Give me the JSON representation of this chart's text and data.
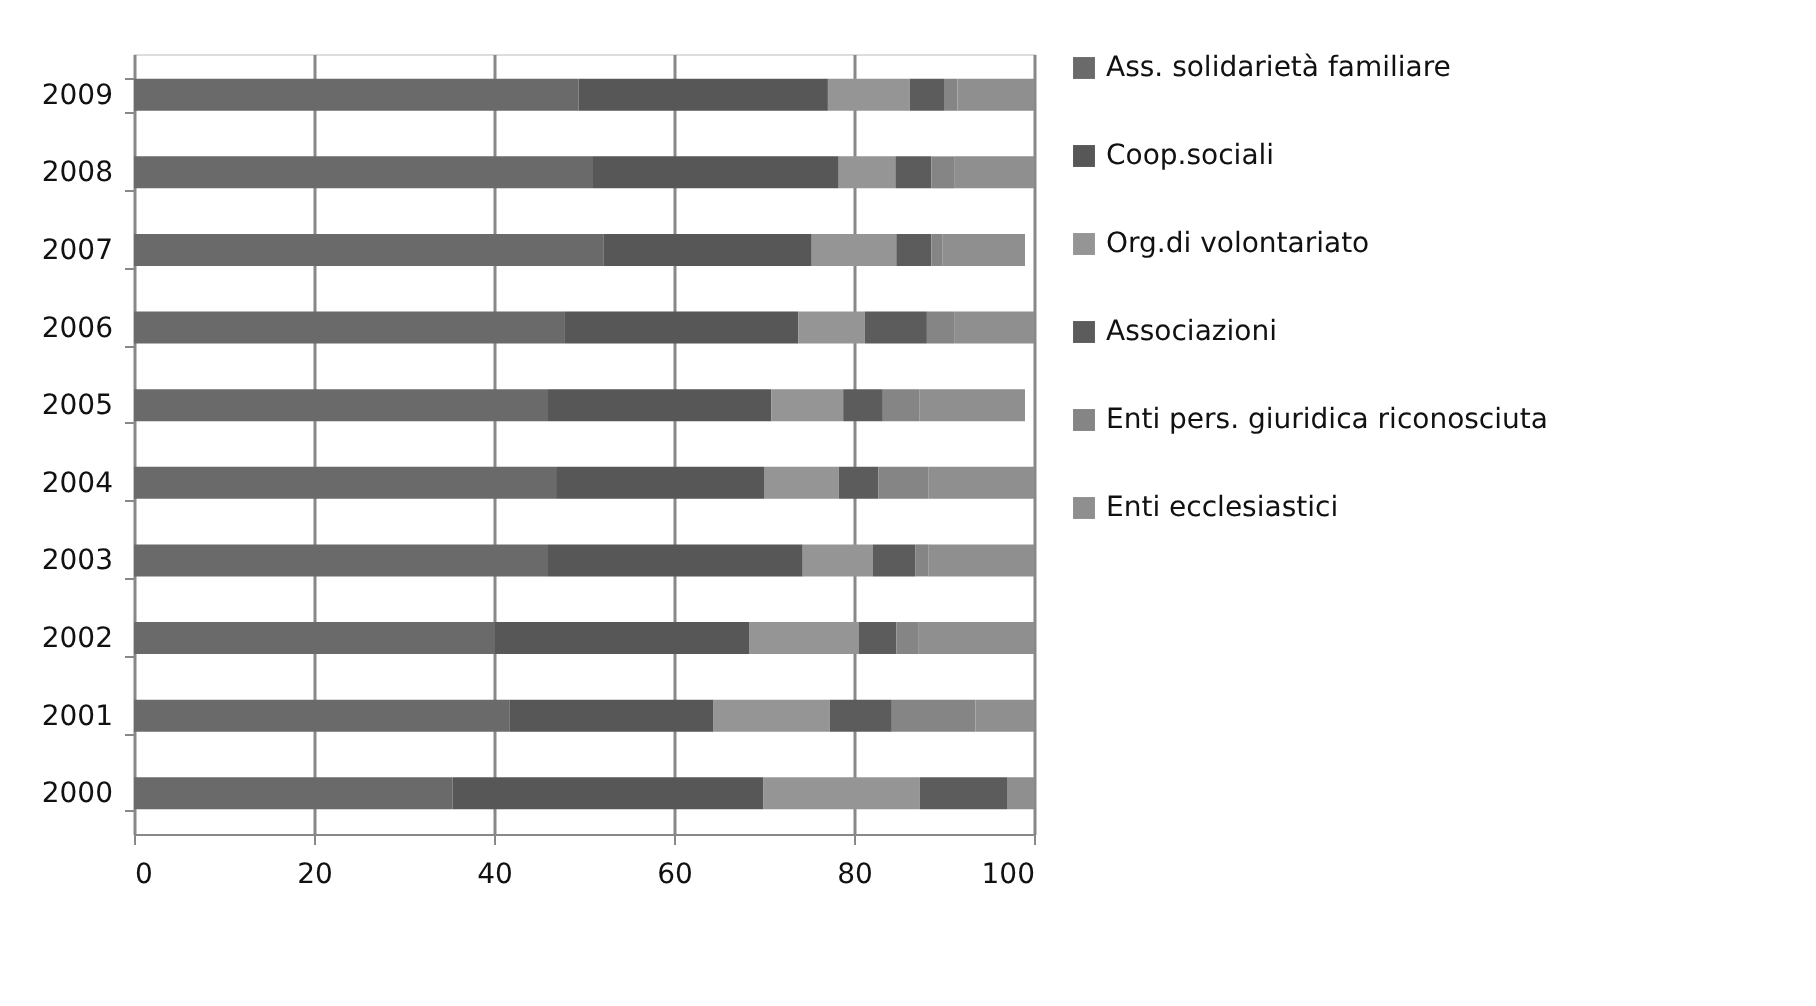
{
  "chart_data": {
    "type": "bar",
    "orientation": "horizontal",
    "stacked": true,
    "categories": [
      "2009",
      "2008",
      "2007",
      "2006",
      "2005",
      "2004",
      "2003",
      "2002",
      "2001",
      "2000"
    ],
    "series": [
      {
        "name": "Ass. solidarietà familiare",
        "color": "#6a6a6a",
        "values": [
          49.4,
          51.0,
          52.2,
          47.8,
          46.0,
          46.9,
          46.0,
          40.1,
          41.7,
          35.4
        ]
      },
      {
        "name": "Coop.sociali",
        "color": "#575757",
        "values": [
          27.7,
          27.3,
          23.1,
          26.0,
          24.8,
          23.1,
          28.3,
          28.3,
          22.7,
          34.5
        ]
      },
      {
        "name": "Org.di volontariato",
        "color": "#959595",
        "values": [
          9.1,
          6.3,
          9.4,
          7.4,
          8.0,
          8.3,
          7.8,
          12.1,
          12.9,
          17.4
        ]
      },
      {
        "name": "Associazioni",
        "color": "#5c5c5c",
        "values": [
          3.8,
          4.0,
          3.9,
          6.9,
          4.4,
          4.4,
          4.7,
          4.2,
          6.9,
          9.7
        ]
      },
      {
        "name": "Enti pers. giuridica riconosciuta",
        "color": "#858585",
        "values": [
          1.5,
          2.6,
          1.2,
          3.1,
          4.1,
          5.6,
          1.5,
          2.5,
          9.3,
          0
        ]
      },
      {
        "name": "Enti ecclesiastici",
        "color": "#8f8f8f",
        "values": [
          8.5,
          8.8,
          9.2,
          8.8,
          11.7,
          11.7,
          11.7,
          12.8,
          6.5,
          3.0
        ]
      }
    ],
    "xlim": [
      0,
      100
    ],
    "xticks": [
      0,
      20,
      40,
      60,
      80,
      100
    ],
    "grid": "x",
    "legend": "right"
  }
}
